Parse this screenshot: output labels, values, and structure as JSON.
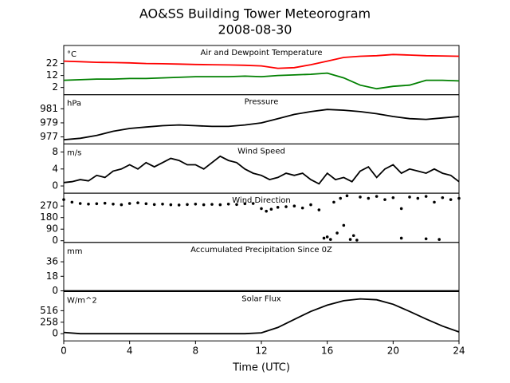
{
  "title": "AO&SS Building Tower Meteorogram",
  "subtitle": "2008-08-30",
  "chart_data": [
    {
      "type": "line",
      "title": "Air and Dewpoint Temperature",
      "ylabel": "°C",
      "x": [
        0,
        1,
        2,
        3,
        4,
        5,
        6,
        7,
        8,
        9,
        10,
        11,
        12,
        13,
        14,
        15,
        16,
        17,
        18,
        19,
        20,
        21,
        22,
        23,
        24
      ],
      "series": [
        {
          "color": "#ff0000",
          "values": [
            24,
            23.5,
            23,
            22.8,
            22.5,
            22,
            21.8,
            21.5,
            21.2,
            21,
            20.8,
            20.5,
            20,
            18,
            18.5,
            21,
            24,
            27,
            28,
            28.5,
            29.5,
            29,
            28.5,
            28.3,
            28
          ]
        },
        {
          "color": "#008000",
          "values": [
            8,
            8.5,
            9,
            9,
            9.5,
            9.5,
            10,
            10.5,
            11,
            11,
            11,
            11.5,
            11,
            12,
            12.5,
            13,
            14,
            10,
            4,
            1,
            3,
            4,
            8,
            8,
            7.5
          ]
        }
      ],
      "xlim": [
        0,
        24
      ],
      "ylim": [
        -4,
        37
      ],
      "yticks": [
        2,
        12,
        22
      ]
    },
    {
      "type": "line",
      "title": "Pressure",
      "ylabel": "hPa",
      "x": [
        0,
        1,
        2,
        3,
        4,
        5,
        6,
        7,
        8,
        9,
        10,
        11,
        12,
        13,
        14,
        15,
        16,
        17,
        18,
        19,
        20,
        21,
        22,
        23,
        24
      ],
      "series": [
        {
          "color": "#000000",
          "values": [
            976.6,
            976.8,
            977.2,
            977.8,
            978.2,
            978.4,
            978.6,
            978.7,
            978.6,
            978.5,
            978.5,
            978.7,
            979.0,
            979.6,
            980.2,
            980.6,
            980.9,
            980.8,
            980.6,
            980.3,
            979.9,
            979.6,
            979.5,
            979.7,
            979.9
          ]
        }
      ],
      "xlim": [
        0,
        24
      ],
      "ylim": [
        976,
        983
      ],
      "yticks": [
        977,
        979,
        981
      ]
    },
    {
      "type": "line",
      "title": "Wind Speed",
      "ylabel": "m/s",
      "x": [
        0,
        0.5,
        1,
        1.5,
        2,
        2.5,
        3,
        3.5,
        4,
        4.5,
        5,
        5.5,
        6,
        6.5,
        7,
        7.5,
        8,
        8.5,
        9,
        9.5,
        10,
        10.5,
        11,
        11.5,
        12,
        12.5,
        13,
        13.5,
        14,
        14.5,
        15,
        15.5,
        16,
        16.5,
        17,
        17.5,
        18,
        18.5,
        19,
        19.5,
        20,
        20.5,
        21,
        21.5,
        22,
        22.5,
        23,
        23.5,
        24
      ],
      "series": [
        {
          "color": "#000000",
          "values": [
            0.8,
            1,
            1.5,
            1.2,
            2.5,
            2,
            3.5,
            4,
            5,
            4,
            5.5,
            4.5,
            5.5,
            6.5,
            6,
            5,
            5,
            4,
            5.5,
            7,
            6,
            5.5,
            4,
            3,
            2.5,
            1.5,
            2,
            3,
            2.5,
            3,
            1.5,
            0.5,
            3,
            1.5,
            2,
            1,
            3.5,
            4.5,
            2,
            4,
            5,
            3,
            4,
            3.5,
            3,
            4,
            3,
            2.5,
            1
          ]
        }
      ],
      "xlim": [
        0,
        24
      ],
      "ylim": [
        -1.7,
        9.9
      ],
      "yticks": [
        0,
        4,
        8
      ]
    },
    {
      "type": "scatter",
      "title": "Wind Direction",
      "x": [
        0,
        0.5,
        1,
        1.5,
        2,
        2.5,
        3,
        3.5,
        4,
        4.5,
        5,
        5.5,
        6,
        6.5,
        7,
        7.5,
        8,
        8.5,
        9,
        9.5,
        10,
        10.5,
        11,
        11.5,
        12,
        12.3,
        12.6,
        13,
        13.5,
        14,
        14.5,
        15,
        15.5,
        15.8,
        16,
        16.2,
        16.4,
        16.6,
        16.8,
        17,
        17.2,
        17.4,
        17.6,
        17.8,
        18,
        18.5,
        19,
        19.5,
        20,
        20.5,
        21,
        21.5,
        22,
        22.5,
        23,
        23.5,
        24,
        20.5,
        22,
        22.8
      ],
      "series": [
        {
          "color": "#000000",
          "values": [
            320,
            300,
            290,
            285,
            288,
            292,
            285,
            280,
            290,
            295,
            288,
            282,
            285,
            280,
            278,
            282,
            285,
            280,
            283,
            280,
            285,
            282,
            288,
            290,
            250,
            230,
            245,
            260,
            265,
            270,
            255,
            280,
            240,
            20,
            30,
            10,
            300,
            60,
            330,
            120,
            350,
            10,
            40,
            5,
            340,
            330,
            345,
            320,
            335,
            250,
            340,
            330,
            345,
            300,
            335,
            320,
            330,
            20,
            15,
            10
          ]
        }
      ],
      "xlim": [
        0,
        24
      ],
      "ylim": [
        -13,
        370
      ],
      "yticks": [
        0,
        90,
        180,
        270
      ]
    },
    {
      "type": "line",
      "title": "Accumulated Precipitation Since 0Z",
      "ylabel": "mm",
      "x": [
        0,
        24
      ],
      "series": [
        {
          "color": "#000000",
          "values": [
            0,
            0
          ]
        }
      ],
      "xlim": [
        0,
        24
      ],
      "ylim": [
        -1,
        60
      ],
      "yticks": [
        0,
        18,
        36
      ]
    },
    {
      "type": "line",
      "title": "Solar Flux",
      "ylabel": "W/m^2",
      "xlabel": "Time (UTC)",
      "x": [
        0,
        1,
        2,
        3,
        4,
        5,
        6,
        7,
        8,
        9,
        10,
        11,
        12,
        13,
        14,
        15,
        16,
        17,
        18,
        19,
        20,
        21,
        22,
        23,
        24
      ],
      "series": [
        {
          "color": "#000000",
          "values": [
            30,
            0,
            0,
            0,
            0,
            0,
            0,
            0,
            0,
            0,
            0,
            0,
            20,
            140,
            320,
            500,
            640,
            740,
            780,
            760,
            660,
            500,
            330,
            170,
            40
          ]
        }
      ],
      "xlim": [
        0,
        24
      ],
      "ylim": [
        -160,
        943
      ],
      "yticks": [
        0,
        258,
        516
      ],
      "xticks": [
        0,
        4,
        8,
        12,
        16,
        20,
        24
      ]
    }
  ]
}
